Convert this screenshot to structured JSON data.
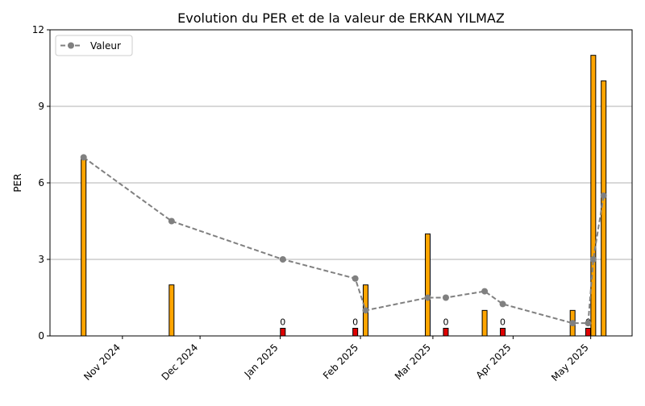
{
  "chart_data": {
    "type": "bar",
    "title": "Evolution du PER et de la valeur de ERKAN YILMAZ",
    "xlabel": "",
    "ylabel": "PER",
    "ylim": [
      0,
      12
    ],
    "yticks": [
      "0",
      "3",
      "6",
      "9",
      "12"
    ],
    "xticks": [
      {
        "label": "Nov 2024",
        "date": "2024-11-01"
      },
      {
        "label": "Dec 2024",
        "date": "2024-12-01"
      },
      {
        "label": "Jan 2025",
        "date": "2025-01-01"
      },
      {
        "label": "Feb 2025",
        "date": "2025-02-01"
      },
      {
        "label": "Mar 2025",
        "date": "2025-03-01"
      },
      {
        "label": "Apr 2025",
        "date": "2025-04-01"
      },
      {
        "label": "May 2025",
        "date": "2025-05-01"
      }
    ],
    "xlim": [
      "2024-10-04",
      "2025-05-17"
    ],
    "grid": "horizontal",
    "legend_position": "top-left",
    "colors": {
      "positive_bar": "#ffa500",
      "zero_bar": "#e00000",
      "bar_edge": "#000000",
      "line": "#808080"
    },
    "bars": [
      {
        "date": "2024-10-17",
        "value": 7,
        "label": ""
      },
      {
        "date": "2024-11-20",
        "value": 2,
        "label": ""
      },
      {
        "date": "2025-01-02",
        "value": 0.3,
        "label": "0"
      },
      {
        "date": "2025-01-30",
        "value": 0.3,
        "label": "0"
      },
      {
        "date": "2025-02-03",
        "value": 2,
        "label": ""
      },
      {
        "date": "2025-02-27",
        "value": 4,
        "label": ""
      },
      {
        "date": "2025-03-06",
        "value": 0.3,
        "label": "0"
      },
      {
        "date": "2025-03-21",
        "value": 1,
        "label": ""
      },
      {
        "date": "2025-03-28",
        "value": 0.3,
        "label": "0"
      },
      {
        "date": "2025-04-24",
        "value": 1,
        "label": ""
      },
      {
        "date": "2025-04-30",
        "value": 0.3,
        "label": "0"
      },
      {
        "date": "2025-05-02",
        "value": 11,
        "label": ""
      },
      {
        "date": "2025-05-06",
        "value": 10,
        "label": ""
      }
    ],
    "series": [
      {
        "name": "Valeur",
        "points": [
          {
            "date": "2024-10-17",
            "value": 7.0
          },
          {
            "date": "2024-11-20",
            "value": 4.5
          },
          {
            "date": "2025-01-02",
            "value": 3.0
          },
          {
            "date": "2025-01-30",
            "value": 2.25
          },
          {
            "date": "2025-02-03",
            "value": 1.0
          },
          {
            "date": "2025-02-27",
            "value": 1.5
          },
          {
            "date": "2025-03-06",
            "value": 1.5
          },
          {
            "date": "2025-03-21",
            "value": 1.75
          },
          {
            "date": "2025-03-28",
            "value": 1.25
          },
          {
            "date": "2025-04-24",
            "value": 0.5
          },
          {
            "date": "2025-04-30",
            "value": 0.5
          },
          {
            "date": "2025-05-02",
            "value": 3.0
          },
          {
            "date": "2025-05-06",
            "value": 5.5
          }
        ]
      }
    ]
  }
}
